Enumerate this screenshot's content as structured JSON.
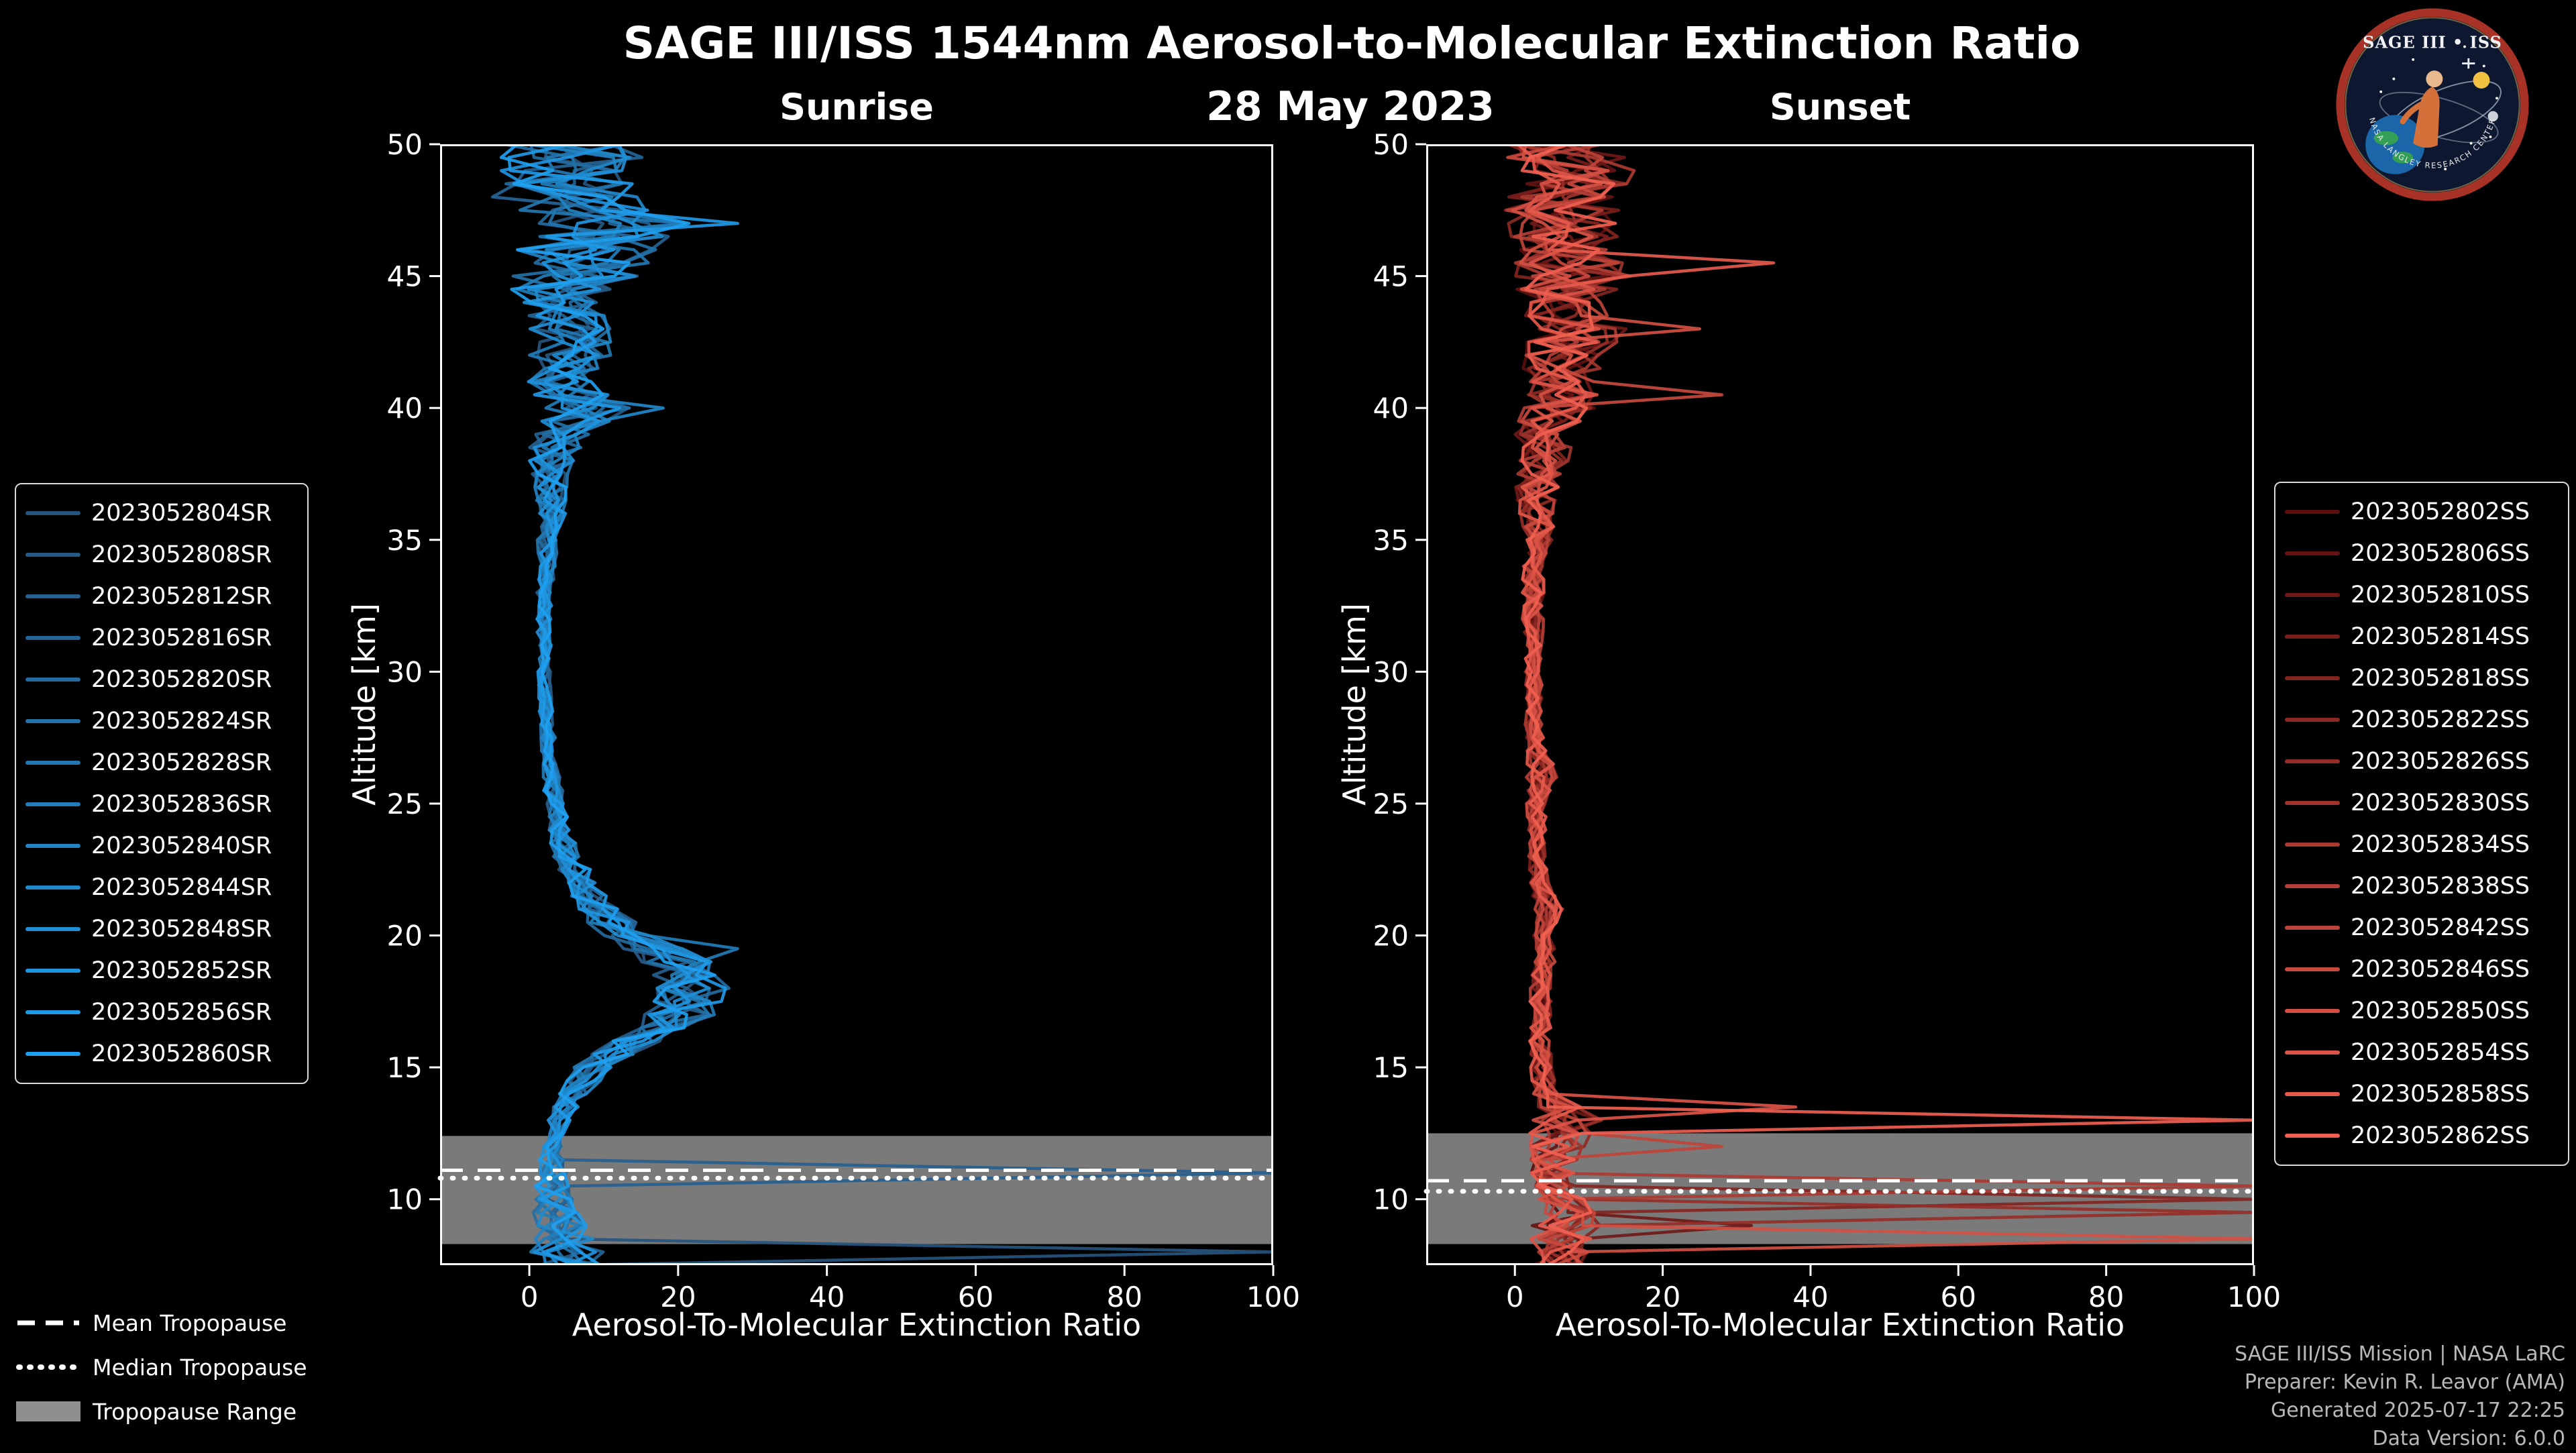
{
  "header": {
    "title": "SAGE III/ISS 1544nm Aerosol-to-Molecular Extinction Ratio",
    "date": "28 May 2023"
  },
  "logo": {
    "title": "SAGE III • ISS",
    "arc_text": "NASA LANGLEY RESEARCH CENTER"
  },
  "colors": {
    "background": "#000000",
    "foreground": "#FFFFFF",
    "tropopause_band": "#8F8F8F",
    "credit_text": "#B8B8B8"
  },
  "tropopause_legend": {
    "items": [
      {
        "label": "Mean Tropopause",
        "style": "dashed"
      },
      {
        "label": "Median Tropopause",
        "style": "dotted"
      },
      {
        "label": "Tropopause Range",
        "style": "band"
      }
    ]
  },
  "footer_credits": {
    "lines": [
      "SAGE III/ISS Mission | NASA LaRC",
      "Preparer: Kevin R. Leavor (AMA)",
      "Generated 2025-07-17 22:25",
      "Data Version: 6.0.0"
    ]
  },
  "chart_data": [
    {
      "type": "line",
      "title": "Sunrise",
      "xlabel": "Aerosol-To-Molecular Extinction Ratio",
      "ylabel": "Altitude [km]",
      "xlim": [
        -12,
        100
      ],
      "ylim": [
        7.5,
        50
      ],
      "xticks": [
        0,
        20,
        40,
        60,
        80,
        100
      ],
      "yticks": [
        10,
        15,
        20,
        25,
        30,
        35,
        40,
        45,
        50
      ],
      "altitudes_km": [
        8,
        9,
        10,
        11,
        12,
        13,
        14,
        15,
        16,
        17,
        18,
        19,
        20,
        21,
        22,
        23,
        24,
        25,
        26,
        27,
        28,
        29,
        30,
        31,
        32,
        33,
        34,
        35,
        36,
        37,
        38,
        39,
        40,
        41,
        42,
        43,
        44,
        45,
        46,
        47,
        48,
        49,
        50
      ],
      "mean_profile": [
        5,
        4,
        3,
        3,
        3,
        4,
        6,
        9,
        14,
        20,
        22,
        20,
        13,
        9,
        7,
        5,
        4,
        3.5,
        3,
        2.5,
        2.5,
        2,
        2,
        2,
        2,
        2,
        2.5,
        2.5,
        3,
        3,
        3,
        4,
        8,
        4,
        5,
        6,
        4,
        6,
        8,
        12,
        5,
        6,
        4
      ],
      "noise_amplitude": [
        5,
        4,
        3,
        2,
        1.5,
        1.5,
        2,
        3,
        4,
        5,
        5,
        5,
        4,
        3,
        2.5,
        2,
        1.5,
        1.5,
        1.2,
        1,
        1,
        1,
        1,
        1,
        1,
        1,
        1.2,
        1.5,
        2,
        2.5,
        3,
        4,
        6,
        5,
        6,
        6,
        6,
        9,
        10,
        11,
        10,
        11,
        10
      ],
      "series": [
        {
          "name": "2023052804SR",
          "color": "#26547C"
        },
        {
          "name": "2023052808SR",
          "color": "#255A85"
        },
        {
          "name": "2023052812SR",
          "color": "#25608E"
        },
        {
          "name": "2023052816SR",
          "color": "#246597"
        },
        {
          "name": "2023052820SR",
          "color": "#246BA0"
        },
        {
          "name": "2023052824SR",
          "color": "#2371A9"
        },
        {
          "name": "2023052828SR",
          "color": "#2277B2"
        },
        {
          "name": "2023052836SR",
          "color": "#227DBA"
        },
        {
          "name": "2023052840SR",
          "color": "#2183C3"
        },
        {
          "name": "2023052844SR",
          "color": "#2189CC"
        },
        {
          "name": "2023052848SR",
          "color": "#208ED5"
        },
        {
          "name": "2023052852SR",
          "color": "#1F94DE"
        },
        {
          "name": "2023052856SR",
          "color": "#1F9AE7"
        },
        {
          "name": "2023052860SR",
          "color": "#1EA0F0"
        }
      ],
      "outliers": [
        {
          "series_index": 12,
          "altitude_km": 47.0,
          "value": 28
        },
        {
          "series_index": 9,
          "altitude_km": 40.0,
          "value": 18
        },
        {
          "series_index": 7,
          "altitude_km": 19.5,
          "value": 28
        },
        {
          "series_index": 2,
          "altitude_km": 11.0,
          "value": 100
        },
        {
          "series_index": 0,
          "altitude_km": 8.0,
          "value": 100
        }
      ],
      "tropopause": {
        "mean_km": 11.1,
        "median_km": 10.8,
        "range_km": [
          8.3,
          12.4
        ]
      }
    },
    {
      "type": "line",
      "title": "Sunset",
      "xlabel": "Aerosol-To-Molecular Extinction Ratio",
      "ylabel": "Altitude [km]",
      "xlim": [
        -12,
        100
      ],
      "ylim": [
        7.5,
        50
      ],
      "xticks": [
        0,
        20,
        40,
        60,
        80,
        100
      ],
      "yticks": [
        10,
        15,
        20,
        25,
        30,
        35,
        40,
        45,
        50
      ],
      "altitudes_km": [
        8,
        9,
        10,
        11,
        12,
        13,
        14,
        15,
        16,
        17,
        18,
        19,
        20,
        21,
        22,
        23,
        24,
        25,
        26,
        27,
        28,
        29,
        30,
        31,
        32,
        33,
        34,
        35,
        36,
        37,
        38,
        39,
        40,
        41,
        42,
        43,
        44,
        45,
        46,
        47,
        48,
        49,
        50
      ],
      "mean_profile": [
        6,
        7,
        6,
        5,
        6,
        7,
        4,
        3.5,
        3.5,
        3.5,
        3.5,
        4,
        4,
        4.5,
        3.5,
        3,
        3,
        3,
        4,
        3,
        2.5,
        2.5,
        2.5,
        2.5,
        2.5,
        2.5,
        2.5,
        3,
        3,
        3,
        4,
        4,
        6,
        6,
        6,
        9,
        6,
        8,
        7,
        7,
        6,
        8,
        6
      ],
      "noise_amplitude": [
        4,
        5,
        4,
        3,
        4,
        5,
        2,
        1.5,
        1.5,
        1.5,
        1.5,
        1.5,
        1.5,
        2,
        1.5,
        1.2,
        1.2,
        1.5,
        2.5,
        1.5,
        1.2,
        1.2,
        1.2,
        1.2,
        1.5,
        1.5,
        1.5,
        2,
        2.5,
        3,
        3.5,
        4,
        5,
        5.5,
        6,
        7,
        6,
        8,
        7,
        8,
        8,
        9,
        8
      ],
      "series": [
        {
          "name": "2023052802SS",
          "color": "#5A0E0E"
        },
        {
          "name": "2023052806SS",
          "color": "#641312"
        },
        {
          "name": "2023052810SS",
          "color": "#6E1917"
        },
        {
          "name": "2023052814SS",
          "color": "#781E1B"
        },
        {
          "name": "2023052818SS",
          "color": "#822420"
        },
        {
          "name": "2023052822SS",
          "color": "#8C2924"
        },
        {
          "name": "2023052826SS",
          "color": "#962E28"
        },
        {
          "name": "2023052830SS",
          "color": "#A0342D"
        },
        {
          "name": "2023052834SS",
          "color": "#AA3931"
        },
        {
          "name": "2023052838SS",
          "color": "#B43F36"
        },
        {
          "name": "2023052842SS",
          "color": "#BE443A"
        },
        {
          "name": "2023052846SS",
          "color": "#C8493E"
        },
        {
          "name": "2023052850SS",
          "color": "#D24F43"
        },
        {
          "name": "2023052854SS",
          "color": "#DC5447"
        },
        {
          "name": "2023052858SS",
          "color": "#E65A4C"
        },
        {
          "name": "2023052862SS",
          "color": "#F05F50"
        }
      ],
      "outliers": [
        {
          "series_index": 14,
          "altitude_km": 45.5,
          "value": 35
        },
        {
          "series_index": 11,
          "altitude_km": 40.5,
          "value": 28
        },
        {
          "series_index": 12,
          "altitude_km": 43.0,
          "value": 25
        },
        {
          "series_index": 15,
          "altitude_km": 13.0,
          "value": 100
        },
        {
          "series_index": 13,
          "altitude_km": 13.5,
          "value": 38
        },
        {
          "series_index": 10,
          "altitude_km": 12.0,
          "value": 28
        },
        {
          "series_index": 8,
          "altitude_km": 10.5,
          "value": 100
        },
        {
          "series_index": 4,
          "altitude_km": 10.0,
          "value": 100
        },
        {
          "series_index": 6,
          "altitude_km": 9.5,
          "value": 100
        },
        {
          "series_index": 12,
          "altitude_km": 8.5,
          "value": 100
        },
        {
          "series_index": 2,
          "altitude_km": 9.0,
          "value": 32
        }
      ],
      "tropopause": {
        "mean_km": 10.7,
        "median_km": 10.3,
        "range_km": [
          8.3,
          12.5
        ]
      }
    }
  ]
}
